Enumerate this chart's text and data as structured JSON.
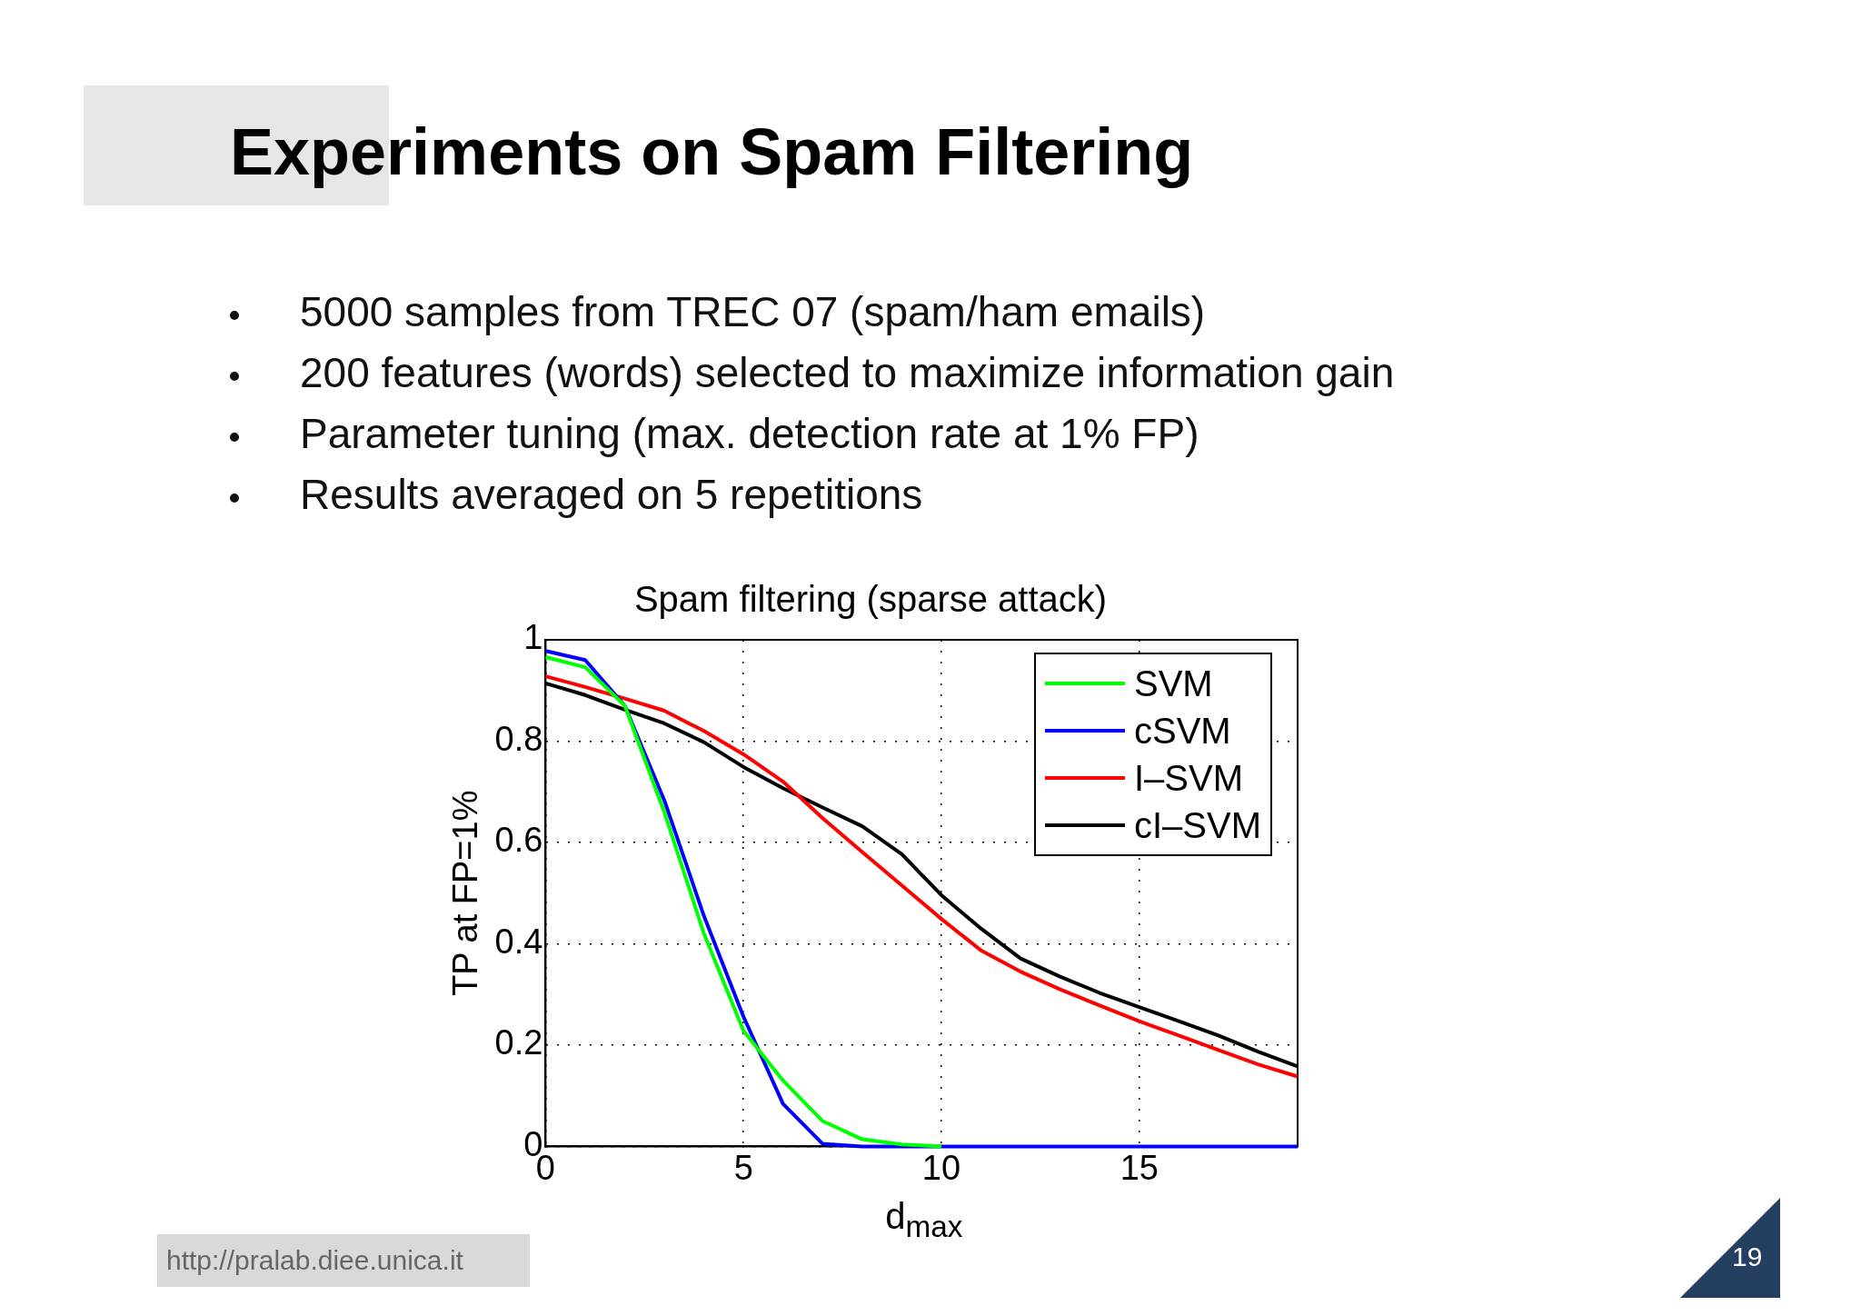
{
  "chart_data": {
    "type": "line",
    "title": "Spam filtering (sparse attack)",
    "xlabel": "d$_{max}$",
    "ylabel": "TP at FP=1%",
    "x": [
      0,
      1,
      2,
      3,
      4,
      5,
      6,
      7,
      8,
      9,
      10,
      11,
      12,
      13,
      14,
      15,
      16,
      17,
      18,
      19
    ],
    "series": [
      {
        "name": "SVM",
        "color": "#00ff00",
        "values": [
          0.966,
          0.946,
          0.87,
          0.66,
          0.42,
          0.228,
          0.13,
          0.05,
          0.014,
          0.004,
          0,
          null,
          null,
          null,
          null,
          null,
          null,
          null,
          null,
          null
        ]
      },
      {
        "name": "cSVM",
        "color": "#0000ff",
        "values": [
          0.978,
          0.96,
          0.87,
          0.683,
          0.455,
          0.256,
          0.084,
          0.005,
          0,
          0,
          0,
          0,
          0,
          0,
          0,
          0,
          0,
          0,
          0,
          0
        ]
      },
      {
        "name": "I–SVM",
        "color": "#ff0000",
        "values": [
          0.928,
          0.907,
          0.884,
          0.86,
          0.82,
          0.774,
          0.72,
          0.648,
          0.581,
          0.515,
          0.449,
          0.387,
          0.345,
          0.31,
          0.278,
          0.247,
          0.219,
          0.19,
          0.162,
          0.138
        ]
      },
      {
        "name": "cI–SVM",
        "color": "#000000",
        "values": [
          0.914,
          0.891,
          0.862,
          0.835,
          0.798,
          0.749,
          0.707,
          0.669,
          0.632,
          0.577,
          0.496,
          0.43,
          0.371,
          0.335,
          0.303,
          0.275,
          0.247,
          0.219,
          0.187,
          0.158
        ]
      }
    ],
    "xlim": [
      0,
      19
    ],
    "xticks": [
      0,
      5,
      10,
      15
    ],
    "ylim": [
      0,
      1
    ],
    "yticks": [
      0,
      0.2,
      0.4,
      0.6,
      0.8,
      1
    ],
    "grid": true,
    "legend": "top right",
    "marker": "none",
    "line_style": "solid",
    "annotations": [
      "Experiments on Spam Filtering",
      "5000 samples from TREC 07 (spam/ham emails)",
      "200 features (words) selected to maximize information gain",
      "Parameter tuning (max. detection rate at 1% FP)",
      "Results averaged on 5 repetitions",
      "http://pralab.diee.unica.it",
      "19"
    ]
  }
}
